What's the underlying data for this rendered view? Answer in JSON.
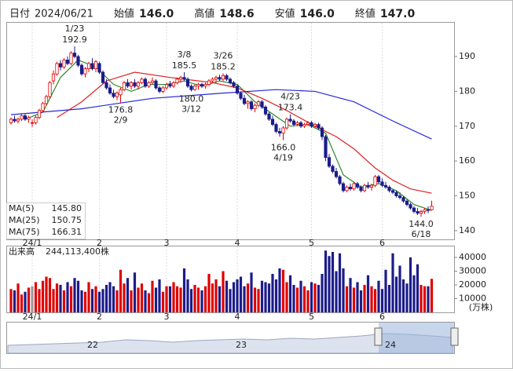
{
  "header": [
    {
      "label": "日付",
      "value": "2024/06/21",
      "color": "#222"
    },
    {
      "label": "始値",
      "value": "146.0",
      "color": "#111"
    },
    {
      "label": "高値",
      "value": "148.6",
      "color": "#e00000"
    },
    {
      "label": "安値",
      "value": "146.0",
      "color": "#108a10"
    },
    {
      "label": "終値",
      "value": "147.0",
      "color": "#111"
    }
  ],
  "chart_data": [
    {
      "type": "candlestick",
      "up_color": "#e00000",
      "down_color": "#1c1c8a",
      "ylim": [
        137.5,
        199.7
      ],
      "yticks": [
        140,
        150,
        160,
        170,
        180,
        190
      ],
      "xticks": [
        {
          "value": 6,
          "label": "24/1"
        },
        {
          "value": 25,
          "label": "2"
        },
        {
          "value": 44,
          "label": "3"
        },
        {
          "value": 64,
          "label": "4"
        },
        {
          "value": 85,
          "label": "5"
        },
        {
          "value": 105,
          "label": "6"
        }
      ],
      "candles": [
        [
          171,
          172.5,
          170.5,
          172
        ],
        [
          172,
          173,
          171,
          171.5
        ],
        [
          171.5,
          172.5,
          170.8,
          172
        ],
        [
          172,
          173.5,
          171.5,
          173
        ],
        [
          173,
          173.5,
          171.5,
          172
        ],
        [
          172,
          173,
          171,
          172.5
        ],
        [
          171,
          172,
          169.8,
          171
        ],
        [
          171,
          173,
          170.5,
          172.5
        ],
        [
          172.5,
          175,
          172,
          174.5
        ],
        [
          174.5,
          177,
          174,
          176.5
        ],
        [
          176.5,
          179,
          176,
          178.5
        ],
        [
          178.5,
          183,
          178,
          182.5
        ],
        [
          183,
          186,
          182,
          185
        ],
        [
          185,
          188.5,
          184.5,
          188
        ],
        [
          188,
          189,
          186,
          187
        ],
        [
          187,
          189.5,
          186.5,
          189
        ],
        [
          189,
          190,
          187.5,
          188
        ],
        [
          188,
          191.5,
          187.5,
          191
        ],
        [
          191,
          192.9,
          189.5,
          190
        ],
        [
          190,
          190.5,
          187,
          187.5
        ],
        [
          187.5,
          188,
          184.5,
          185
        ],
        [
          185,
          187,
          184,
          186.5
        ],
        [
          186.5,
          188.5,
          185.5,
          188
        ],
        [
          188,
          189.5,
          186,
          186.5
        ],
        [
          186.5,
          189,
          185.5,
          188.5
        ],
        [
          188,
          188.5,
          185,
          185.5
        ],
        [
          185.5,
          186,
          182,
          182.5
        ],
        [
          182.5,
          183.5,
          180.5,
          181
        ],
        [
          181,
          182,
          179,
          179.5
        ],
        [
          179.5,
          180.5,
          178,
          178.5
        ],
        [
          178.5,
          180,
          177.5,
          179.5
        ],
        [
          179,
          181,
          176.8,
          180.5
        ],
        [
          180.5,
          183,
          180,
          182.5
        ],
        [
          182.5,
          183.5,
          181,
          181.5
        ],
        [
          181.5,
          183,
          180.5,
          182.5
        ],
        [
          182.5,
          183.5,
          181,
          181.5
        ],
        [
          181.5,
          183,
          180.5,
          182.5
        ],
        [
          182.5,
          184,
          182,
          183.5
        ],
        [
          183.5,
          184,
          181,
          181.5
        ],
        [
          181.5,
          183,
          181,
          182.5
        ],
        [
          182.5,
          184,
          182,
          183
        ],
        [
          183,
          183.5,
          180.5,
          181
        ],
        [
          181,
          181.5,
          179.5,
          180
        ],
        [
          180,
          181.5,
          179.5,
          181
        ],
        [
          181,
          182.5,
          180.5,
          182
        ],
        [
          182,
          183,
          181,
          181.5
        ],
        [
          181.5,
          183,
          181,
          182.5
        ],
        [
          182.5,
          184,
          182,
          183.5
        ],
        [
          183.5,
          184.5,
          182.5,
          184
        ],
        [
          184,
          185.5,
          183,
          183.5
        ],
        [
          183.5,
          184,
          181,
          181.5
        ],
        [
          181.5,
          182,
          180,
          180.5
        ],
        [
          180.5,
          182,
          180.2,
          181.5
        ],
        [
          181.5,
          182.5,
          180.5,
          182
        ],
        [
          182,
          182.5,
          181,
          181.5
        ],
        [
          181.5,
          182.5,
          180.8,
          182
        ],
        [
          182,
          183.5,
          181.5,
          183
        ],
        [
          183,
          184,
          182.5,
          183.5
        ],
        [
          183.5,
          184.5,
          182.5,
          184
        ],
        [
          184,
          184.8,
          183,
          183.5
        ],
        [
          183.5,
          185.2,
          183,
          184.5
        ],
        [
          184.5,
          185,
          183,
          183.5
        ],
        [
          183.5,
          184,
          182,
          182.5
        ],
        [
          182.5,
          183,
          181,
          181.5
        ],
        [
          181.5,
          182,
          179,
          179.5
        ],
        [
          179.5,
          180,
          177.5,
          178
        ],
        [
          178,
          179,
          176,
          176.5
        ],
        [
          176.5,
          177.5,
          175,
          177
        ],
        [
          177,
          177.5,
          174.5,
          175
        ],
        [
          175,
          176.5,
          174,
          176
        ],
        [
          176,
          177.5,
          175.5,
          177
        ],
        [
          177,
          177.5,
          175,
          175.5
        ],
        [
          175.5,
          176,
          173,
          173.5
        ],
        [
          173.5,
          174,
          171.5,
          172
        ],
        [
          172,
          173,
          170,
          170.5
        ],
        [
          170.5,
          171,
          168,
          168.5
        ],
        [
          168.5,
          169.5,
          167,
          168
        ],
        [
          168,
          170,
          166,
          169.5
        ],
        [
          169.5,
          172.5,
          169,
          172
        ],
        [
          172,
          173.4,
          171,
          171.5
        ],
        [
          171.5,
          172,
          170,
          170.5
        ],
        [
          170.5,
          171.5,
          170,
          171
        ],
        [
          171,
          171.5,
          169.5,
          170
        ],
        [
          170,
          171,
          169.5,
          170.5
        ],
        [
          170.5,
          171.5,
          170,
          171
        ],
        [
          171,
          171.5,
          169.5,
          170
        ],
        [
          170,
          171,
          169.5,
          170.5
        ],
        [
          170.5,
          171,
          169,
          169.5
        ],
        [
          169.5,
          170,
          166,
          167
        ],
        [
          167,
          167.5,
          160,
          161
        ],
        [
          161,
          162,
          158,
          158.5
        ],
        [
          158.5,
          159,
          156.5,
          157
        ],
        [
          157,
          158,
          155,
          155.5
        ],
        [
          155.5,
          156,
          153,
          153.5
        ],
        [
          153.5,
          154,
          151,
          151.5
        ],
        [
          151.5,
          153,
          151,
          152.5
        ],
        [
          152.5,
          153.5,
          151.5,
          152
        ],
        [
          152,
          154,
          151.5,
          153.5
        ],
        [
          153.5,
          154,
          152,
          152.5
        ],
        [
          152.5,
          153,
          151,
          151.5
        ],
        [
          151.5,
          153.5,
          151,
          153
        ],
        [
          153,
          154,
          152,
          152.5
        ],
        [
          152.5,
          153.5,
          151.5,
          153
        ],
        [
          153,
          156,
          152.5,
          155.5
        ],
        [
          155.5,
          156,
          153.5,
          154
        ],
        [
          154,
          155,
          152.5,
          153
        ],
        [
          153,
          154,
          152,
          152.5
        ],
        [
          152.5,
          153,
          151,
          151.5
        ],
        [
          151.5,
          152,
          150.5,
          151
        ],
        [
          151,
          151.5,
          149.5,
          150
        ],
        [
          150,
          151,
          149,
          149.5
        ],
        [
          149.5,
          150,
          148,
          148.5
        ],
        [
          148.5,
          149,
          147,
          147.5
        ],
        [
          147.5,
          148,
          146,
          146.5
        ],
        [
          146.5,
          147,
          145,
          145.5
        ],
        [
          145.5,
          146.5,
          144.5,
          145
        ],
        [
          145,
          146,
          144,
          145.5
        ],
        [
          145.5,
          146.5,
          144.8,
          146
        ],
        [
          146,
          147,
          145,
          145.8
        ],
        [
          146,
          148.6,
          146,
          147
        ]
      ],
      "series": [
        {
          "name": "MA(5)",
          "last": "145.80",
          "color": "#2a8a2a",
          "x": [
            4,
            9,
            14,
            19,
            24,
            29,
            34,
            39,
            44,
            49,
            54,
            59,
            64,
            69,
            74,
            79,
            84,
            89,
            94,
            99,
            104,
            109,
            114,
            119
          ],
          "values": [
            172,
            174,
            184,
            189,
            187,
            182,
            180,
            182,
            182,
            183,
            181.5,
            183,
            182,
            177,
            173.5,
            170,
            170.5,
            168,
            156,
            152.5,
            153.5,
            151.5,
            147.5,
            145.8
          ]
        },
        {
          "name": "MA(25)",
          "last": "150.75",
          "color": "#e02020",
          "x": [
            13,
            20,
            27,
            35,
            45,
            57,
            64,
            71,
            78,
            86,
            92,
            97,
            103,
            108,
            113,
            119
          ],
          "values": [
            172.5,
            177,
            183,
            185.5,
            184,
            182.5,
            181,
            178,
            174.5,
            170,
            167,
            163.5,
            158,
            154.5,
            152,
            150.75
          ]
        },
        {
          "name": "MA(75)",
          "last": "166.31",
          "color": "#2828d8",
          "x": [
            0,
            20,
            40,
            60,
            75,
            86,
            97,
            108,
            119
          ],
          "values": [
            173.3,
            175,
            178,
            179.5,
            180.5,
            180,
            177,
            171.5,
            166.31
          ]
        }
      ],
      "annotations": [
        {
          "date": "1/23",
          "price": 192.9,
          "x": 18,
          "place": "above"
        },
        {
          "date": "2/9",
          "price": 176.8,
          "x": 31,
          "place": "below"
        },
        {
          "date": "3/8",
          "price": 185.5,
          "x": 49,
          "place": "above"
        },
        {
          "date": "3/12",
          "price": {
            "value": 180,
            "label": "180.0"
          },
          "x": 51,
          "place": "below"
        },
        {
          "date": "3/26",
          "price": 185.2,
          "x": 60,
          "place": "above"
        },
        {
          "date": "4/19",
          "price": {
            "value": 166,
            "label": "166.0"
          },
          "x": 77,
          "place": "below"
        },
        {
          "date": "4/23",
          "price": 173.4,
          "x": 79,
          "place": "above"
        },
        {
          "date": "6/18",
          "price": {
            "value": 144,
            "label": "144.0"
          },
          "x": 116,
          "place": "below"
        }
      ]
    },
    {
      "type": "bar",
      "title": "出来高",
      "total": "244,113,400株",
      "unit": "(万株)",
      "ylim": [
        0,
        48000
      ],
      "yticks": [
        10000,
        20000,
        30000,
        40000
      ],
      "values": [
        17000,
        16000,
        21000,
        13000,
        15000,
        18000,
        19000,
        22000,
        17000,
        23000,
        26000,
        25000,
        17000,
        21000,
        20000,
        16000,
        22000,
        19000,
        25000,
        23000,
        16000,
        15000,
        22000,
        17000,
        19000,
        15000,
        17000,
        20000,
        22000,
        19000,
        16000,
        31000,
        21000,
        25000,
        16000,
        29000,
        18000,
        21000,
        16000,
        14000,
        23000,
        18000,
        24000,
        15000,
        19000,
        19000,
        22000,
        19000,
        18000,
        32000,
        24000,
        17000,
        20000,
        18000,
        16000,
        19000,
        28000,
        21000,
        24000,
        19000,
        30000,
        23000,
        17000,
        22000,
        24000,
        26000,
        19000,
        21000,
        29000,
        18000,
        17000,
        23000,
        22000,
        21000,
        28000,
        24000,
        32000,
        31000,
        22000,
        27000,
        20000,
        18000,
        23000,
        19000,
        16000,
        22000,
        21000,
        20000,
        28000,
        45000,
        41000,
        44000,
        30000,
        43000,
        32000,
        19000,
        25000,
        18000,
        22000,
        16000,
        20000,
        27000,
        19000,
        17000,
        23000,
        17000,
        31000,
        20000,
        43000,
        26000,
        34000,
        24000,
        21000,
        40000,
        27000,
        35000,
        20000,
        19000,
        19000,
        24411.34
      ]
    }
  ],
  "navigator": {
    "labels": [
      "22",
      "23",
      "24"
    ]
  }
}
